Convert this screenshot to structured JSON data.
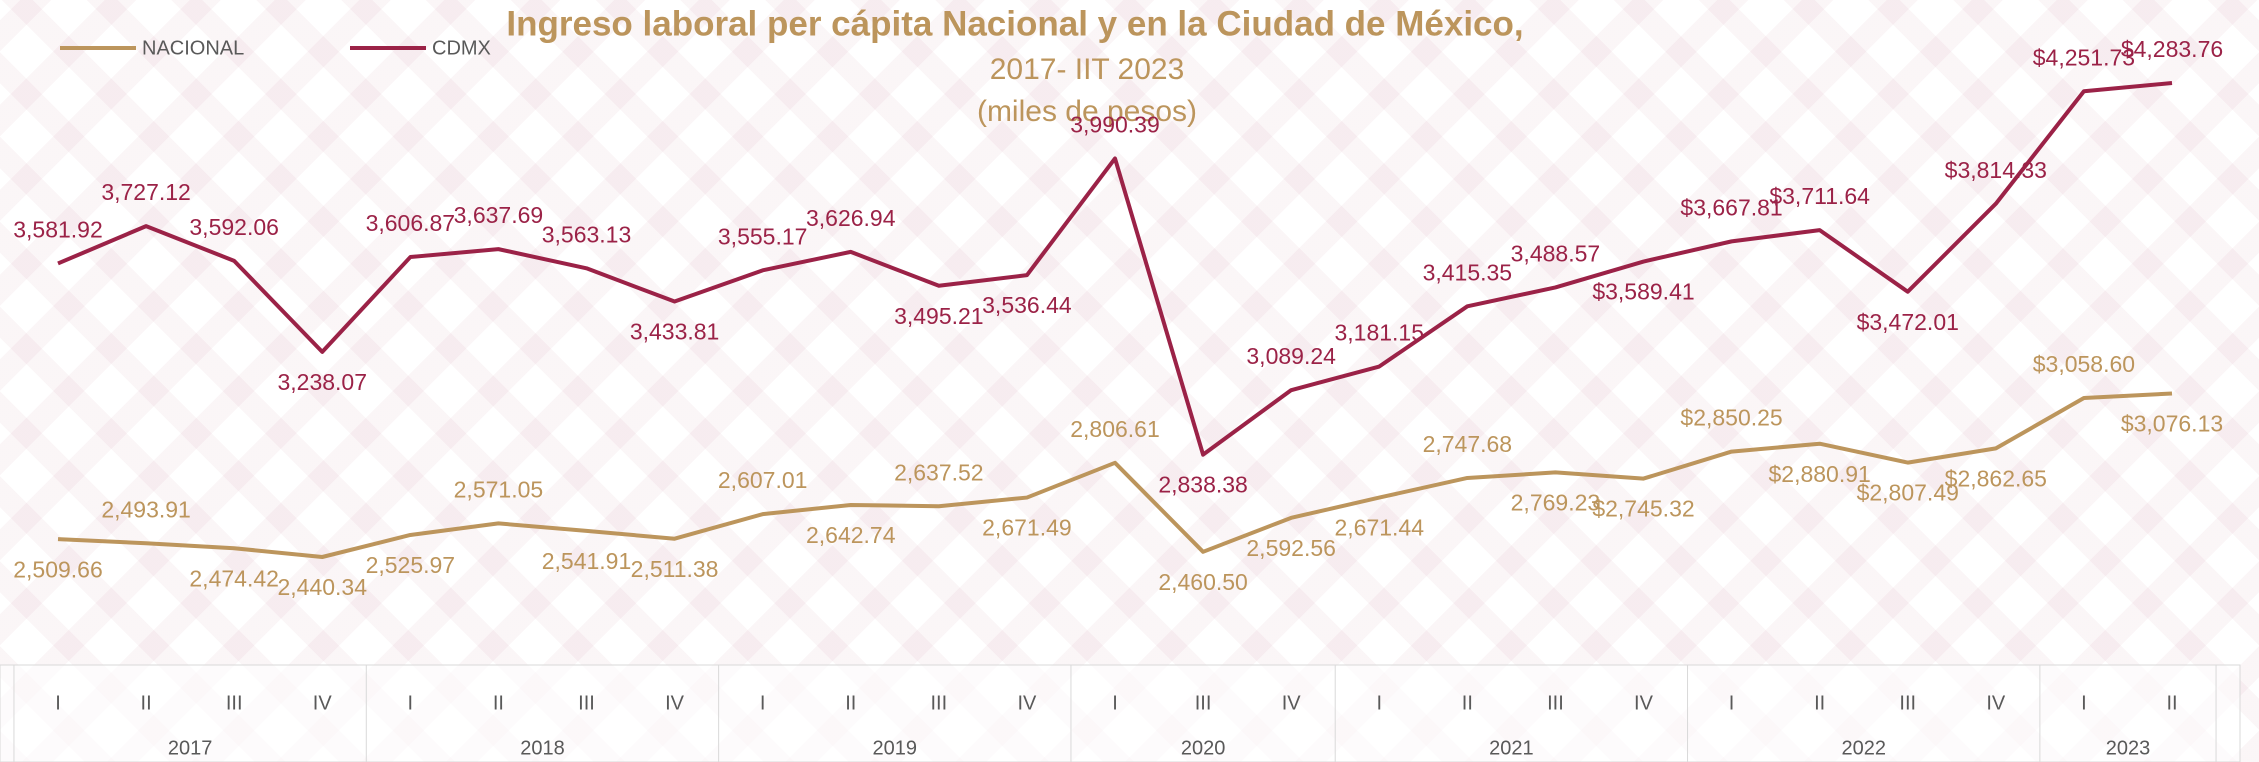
{
  "chart_data": {
    "type": "line",
    "title": "Ingreso laboral per cápita Nacional y en la Ciudad de México,",
    "subtitle": [
      "2017- IIT 2023",
      "(miles de pesos)"
    ],
    "categories": [
      "I",
      "II",
      "III",
      "IV",
      "I",
      "II",
      "III",
      "IV",
      "I",
      "II",
      "III",
      "IV",
      "I",
      "III",
      "IV",
      "I",
      "II",
      "III",
      "IV",
      "I",
      "II",
      "III",
      "IV",
      "I",
      "II"
    ],
    "year_groups": [
      {
        "label": "2017",
        "size": 4
      },
      {
        "label": "2018",
        "size": 4
      },
      {
        "label": "2019",
        "size": 4
      },
      {
        "label": "2020",
        "size": 3
      },
      {
        "label": "2021",
        "size": 4
      },
      {
        "label": "2022",
        "size": 4
      },
      {
        "label": "2023",
        "size": 2
      }
    ],
    "legend": "top-left",
    "series": [
      {
        "name": "NACIONAL",
        "color": "#bc955c",
        "values": [
          2509.66,
          2493.91,
          2474.42,
          2440.34,
          2525.97,
          2571.05,
          2541.91,
          2511.38,
          2607.01,
          2642.74,
          2637.52,
          2671.49,
          2806.61,
          2460.5,
          2592.56,
          2671.44,
          2747.68,
          2769.23,
          2745.32,
          2850.25,
          2880.91,
          2807.49,
          2862.65,
          3058.6,
          3076.13
        ],
        "value_labels": [
          "2,509.66",
          "2,493.91",
          "2,474.42",
          "2,440.34",
          "2,525.97",
          "2,571.05",
          "2,541.91",
          "2,511.38",
          "2,607.01",
          "2,642.74",
          "2,637.52",
          "2,671.49",
          "2,806.61",
          "2,460.50",
          "2,592.56",
          "2,671.44",
          "2,747.68",
          "2,769.23",
          "$2,745.32",
          "$2,850.25",
          "$2,880.91",
          "$2,807.49",
          "$2,862.65",
          "$3,058.60",
          "$3,076.13"
        ]
      },
      {
        "name": "CDMX",
        "color": "#9b2247",
        "values": [
          3581.92,
          3727.12,
          3592.06,
          3238.07,
          3606.87,
          3637.69,
          3563.13,
          3433.81,
          3555.17,
          3626.94,
          3495.21,
          3536.44,
          3990.39,
          2838.38,
          3089.24,
          3181.15,
          3415.35,
          3488.57,
          3589.41,
          3667.81,
          3711.64,
          3472.01,
          3814.33,
          4251.73,
          4283.76
        ],
        "value_labels": [
          "3,581.92",
          "3,727.12",
          "3,592.06",
          "3,238.07",
          "3,606.87",
          "3,637.69",
          "3,563.13",
          "3,433.81",
          "3,555.17",
          "3,626.94",
          "3,495.21",
          "3,536.44",
          "3,990.39",
          "2,838.38",
          "3,089.24",
          "3,181.15",
          "3,415.35",
          "3,488.57",
          "$3,589.41",
          "$3,667.81",
          "$3,711.64",
          "$3,472.01",
          "$3,814.33",
          "$4,251.73",
          "$4,283.76"
        ]
      }
    ]
  }
}
